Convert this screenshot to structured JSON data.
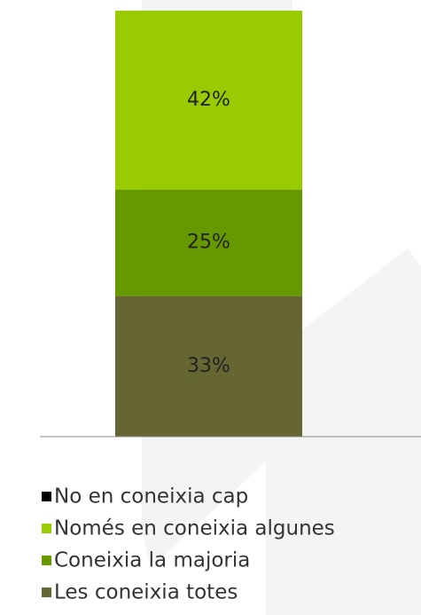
{
  "chart_data": {
    "type": "stacked_bar",
    "categories": [
      null
    ],
    "series": [
      {
        "name": "No en coneixia cap",
        "color": "#000000",
        "values": [
          0
        ]
      },
      {
        "name": "Només en coneixia algunes",
        "color": "#99cc00",
        "values": [
          42
        ],
        "value_labels": [
          "42%"
        ]
      },
      {
        "name": "Coneixia la majoria",
        "color": "#669900",
        "values": [
          25
        ],
        "value_labels": [
          "25%"
        ]
      },
      {
        "name": "Les coneixia totes",
        "color": "#666633",
        "values": [
          33
        ],
        "value_labels": [
          "33%"
        ]
      }
    ],
    "ylim": [
      0,
      100
    ]
  }
}
